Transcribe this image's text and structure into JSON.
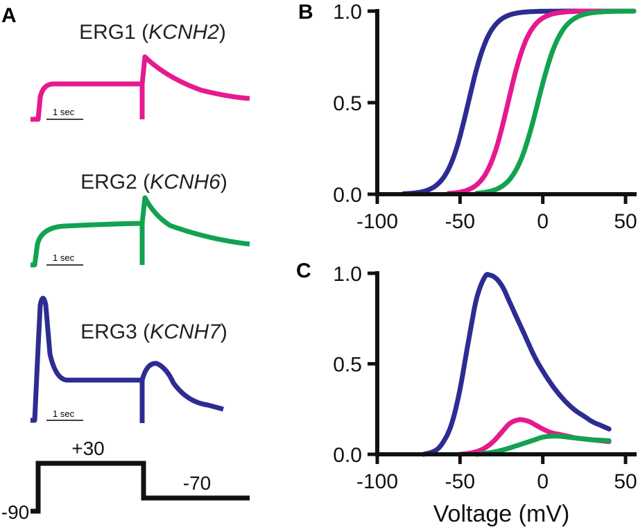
{
  "colors": {
    "erg1": "#e6198f",
    "erg2": "#12a250",
    "erg3": "#2c2c92",
    "axis": "#111111"
  },
  "panel_labels": {
    "a": "A",
    "b": "B",
    "c": "C"
  },
  "traces": [
    {
      "key": "erg1",
      "name": "ERG1 (",
      "gene": "KCNH2",
      "close": ")",
      "scale_label": "1 sec"
    },
    {
      "key": "erg2",
      "name": "ERG2 (",
      "gene": "KCNH6",
      "close": ")",
      "scale_label": "1 sec"
    },
    {
      "key": "erg3",
      "name": "ERG3 (",
      "gene": "KCNH7",
      "close": ")",
      "scale_label": "1 sec"
    }
  ],
  "protocol": {
    "step_label": "+30",
    "tail_label": "-70",
    "hold_label": "-90"
  },
  "chart_data": [
    {
      "panel": "B",
      "type": "line",
      "title": "",
      "xlabel": "",
      "ylabel": "",
      "xlim": [
        -100,
        55
      ],
      "ylim": [
        0,
        1
      ],
      "xticks": [
        -100,
        -50,
        0,
        50
      ],
      "xtick_labels": [
        "-100",
        "-50",
        "0",
        "50"
      ],
      "yticks": [
        0,
        0.5,
        1
      ],
      "ytick_labels": [
        "0.0",
        "0.5",
        "1.0"
      ],
      "series": [
        {
          "name": "ERG3",
          "color_key": "erg3",
          "v_half": -45,
          "slope": 6.5,
          "x_start": -84
        },
        {
          "name": "ERG1",
          "color_key": "erg1",
          "v_half": -21,
          "slope": 6.5,
          "x_start": -57
        },
        {
          "name": "ERG2",
          "color_key": "erg2",
          "v_half": -3,
          "slope": 7,
          "x_start": -40
        }
      ]
    },
    {
      "panel": "C",
      "type": "line",
      "title": "",
      "xlabel": "Voltage (mV)",
      "ylabel": "",
      "xlim": [
        -100,
        55
      ],
      "ylim": [
        0,
        1
      ],
      "xticks": [
        -100,
        -50,
        0,
        50
      ],
      "xtick_labels": [
        "-100",
        "-50",
        "0",
        "50"
      ],
      "yticks": [
        0,
        0.5,
        1
      ],
      "ytick_labels": [
        "0.0",
        "0.5",
        "1.0"
      ],
      "series": [
        {
          "name": "ERG3",
          "color_key": "erg3",
          "x": [
            -72,
            -65,
            -60,
            -55,
            -50,
            -45,
            -40,
            -35,
            -32,
            -28,
            -24,
            -20,
            -15,
            -10,
            -5,
            0,
            5,
            10,
            15,
            20,
            25,
            30,
            35,
            40
          ],
          "y": [
            0.0,
            0.02,
            0.07,
            0.17,
            0.36,
            0.62,
            0.86,
            0.98,
            0.99,
            0.97,
            0.92,
            0.84,
            0.74,
            0.64,
            0.54,
            0.46,
            0.39,
            0.33,
            0.28,
            0.24,
            0.21,
            0.18,
            0.16,
            0.14
          ]
        },
        {
          "name": "ERG1",
          "color_key": "erg1",
          "x": [
            -50,
            -45,
            -40,
            -35,
            -30,
            -25,
            -20,
            -15,
            -12,
            -8,
            -4,
            0,
            5,
            10,
            15,
            20,
            25,
            30,
            35,
            40
          ],
          "y": [
            0.0,
            0.005,
            0.015,
            0.035,
            0.07,
            0.12,
            0.17,
            0.19,
            0.19,
            0.18,
            0.16,
            0.14,
            0.12,
            0.11,
            0.1,
            0.09,
            0.085,
            0.08,
            0.075,
            0.07
          ]
        },
        {
          "name": "ERG2",
          "color_key": "erg2",
          "x": [
            -40,
            -35,
            -30,
            -25,
            -20,
            -15,
            -10,
            -5,
            0,
            5,
            10,
            15,
            20,
            25,
            30,
            35,
            40
          ],
          "y": [
            0.0,
            0.005,
            0.012,
            0.022,
            0.035,
            0.05,
            0.065,
            0.08,
            0.095,
            0.1,
            0.1,
            0.095,
            0.09,
            0.085,
            0.08,
            0.078,
            0.075
          ]
        }
      ]
    }
  ]
}
